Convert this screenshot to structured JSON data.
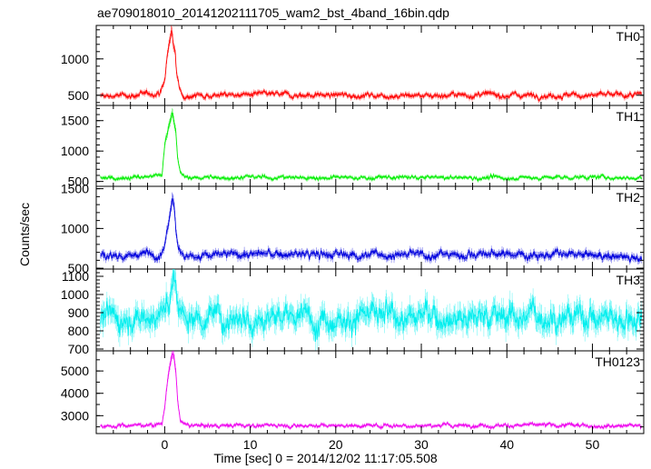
{
  "chart_data": {
    "type": "line",
    "title": "ae709018010_20141202111705_wam2_bst_4band_16bin.qdp",
    "xlabel": "Time [sec] 0 = 2014/12/02 11:17:05.508",
    "ylabel": "Counts/sec",
    "xlim": [
      -8,
      56
    ],
    "xticks": [
      "0",
      "10",
      "20",
      "30",
      "40",
      "50"
    ],
    "error_bars": true,
    "panels": [
      {
        "name": "TH0",
        "color": "#ff0000",
        "ylim": [
          360,
          1460
        ],
        "yticks": [
          "500",
          "1000"
        ],
        "baseline": 500,
        "noise": 40,
        "x": [
          -8,
          -2,
          -0.5,
          0,
          0.3,
          0.6,
          0.8,
          1.0,
          1.2,
          1.4,
          1.7,
          2.0,
          3,
          10,
          20,
          30,
          40,
          50,
          56
        ],
        "y": [
          480,
          510,
          540,
          700,
          1050,
          1250,
          1420,
          1200,
          1100,
          800,
          620,
          520,
          500,
          510,
          500,
          500,
          505,
          500,
          500
        ]
      },
      {
        "name": "TH1",
        "color": "#00ee00",
        "ylim": [
          420,
          1750
        ],
        "yticks": [
          "500",
          "1000",
          "1500"
        ],
        "baseline": 560,
        "noise": 35,
        "x": [
          -8,
          -2,
          -0.3,
          0,
          0.3,
          0.6,
          0.9,
          1.1,
          1.3,
          1.5,
          1.8,
          2.2,
          3,
          10,
          20,
          30,
          40,
          50,
          56
        ],
        "y": [
          560,
          570,
          600,
          1100,
          1300,
          1500,
          1650,
          1500,
          1350,
          900,
          650,
          570,
          560,
          570,
          560,
          565,
          560,
          570,
          560
        ]
      },
      {
        "name": "TH2",
        "color": "#0000dd",
        "ylim": [
          490,
          1530
        ],
        "yticks": [
          "500",
          "1000",
          "1500"
        ],
        "baseline": 670,
        "noise": 55,
        "x": [
          -8,
          -2,
          -0.5,
          0,
          0.3,
          0.6,
          0.9,
          1.1,
          1.3,
          1.5,
          1.8,
          2.2,
          3,
          10,
          20,
          30,
          40,
          50,
          56
        ],
        "y": [
          650,
          680,
          700,
          800,
          1000,
          1200,
          1450,
          1300,
          1000,
          850,
          700,
          660,
          650,
          680,
          670,
          670,
          680,
          660,
          640
        ]
      },
      {
        "name": "TH3",
        "color": "#00eeee",
        "ylim": [
          690,
          1140
        ],
        "yticks": [
          "700",
          "800",
          "900",
          "1000",
          "1100"
        ],
        "baseline": 880,
        "noise": 75,
        "x": [
          -8,
          -2,
          0,
          0.5,
          1.0,
          1.3,
          1.8,
          3,
          10,
          20,
          30,
          40,
          50,
          56
        ],
        "y": [
          870,
          880,
          900,
          960,
          1080,
          1000,
          900,
          880,
          880,
          875,
          880,
          885,
          880,
          870
        ]
      },
      {
        "name": "TH0123",
        "color": "#ee00ee",
        "ylim": [
          2200,
          5900
        ],
        "yticks": [
          "3000",
          "4000",
          "5000"
        ],
        "baseline": 2550,
        "noise": 90,
        "x": [
          -8,
          -2,
          -0.3,
          0,
          0.3,
          0.6,
          0.9,
          1.1,
          1.3,
          1.5,
          1.8,
          2.2,
          3,
          10,
          20,
          30,
          40,
          50,
          56
        ],
        "y": [
          2550,
          2580,
          2650,
          3400,
          4500,
          5200,
          5750,
          5600,
          5000,
          3800,
          2800,
          2600,
          2550,
          2570,
          2560,
          2560,
          2570,
          2560,
          2550
        ]
      }
    ]
  }
}
